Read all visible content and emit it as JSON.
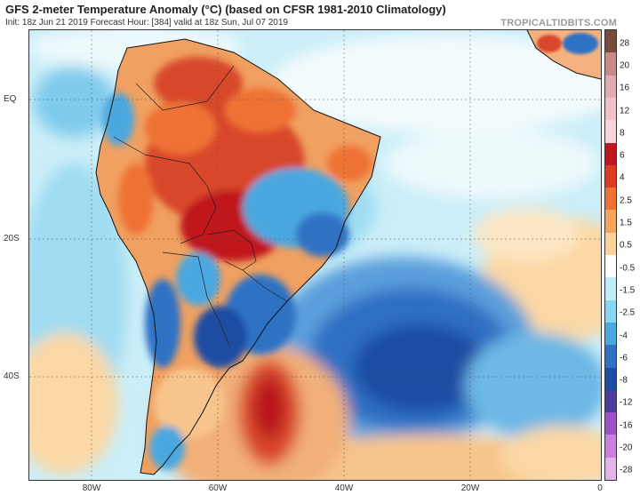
{
  "header": {
    "title": "GFS 2-meter Temperature Anomaly (°C) (based on CFSR 1981-2010 Climatology)",
    "subtitle": "Init: 18z Jun 21 2019   Forecast Hour: [384]   valid at 18z Sun, Jul 07 2019",
    "credit": "TROPICALTIDBITS.COM"
  },
  "map": {
    "lat_labels": [
      "EQ",
      "20S",
      "40S"
    ],
    "lon_labels": [
      "80W",
      "60W",
      "40W",
      "20W",
      "0"
    ]
  },
  "colorbar": {
    "labels": [
      "28",
      "20",
      "16",
      "12",
      "8",
      "6",
      "4",
      "2.5",
      "1.5",
      "0.5",
      "-0.5",
      "-1.5",
      "-2.5",
      "-4",
      "-6",
      "-8",
      "-12",
      "-16",
      "-20",
      "-28"
    ],
    "colors": [
      "#7a4a3a",
      "#c98a88",
      "#e3aab4",
      "#f0c2c8",
      "#f5d6d8",
      "#c0151c",
      "#df3b22",
      "#ef7235",
      "#f6a55c",
      "#fbd39a",
      "#ffffff",
      "#bfeef8",
      "#86d6f0",
      "#4ba7df",
      "#2d72c4",
      "#1d4ea3",
      "#4c3c9c",
      "#9a52c6",
      "#cc7fdc",
      "#e3b4ea"
    ]
  }
}
